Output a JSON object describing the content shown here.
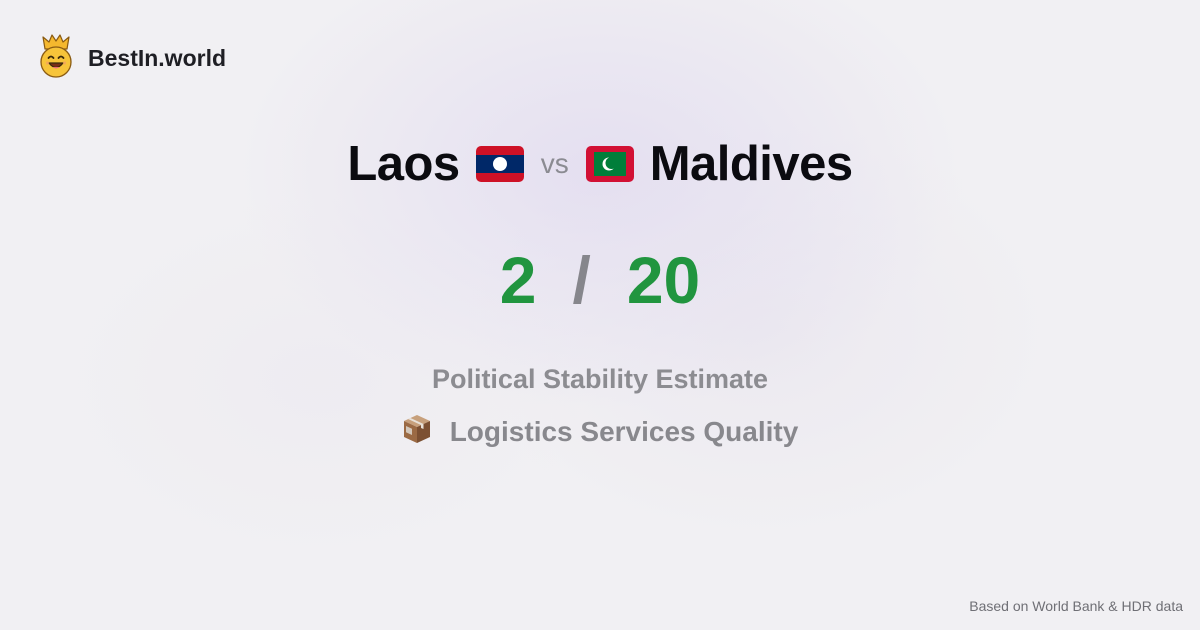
{
  "brand": {
    "name": "BestIn.world",
    "logo_icon": "crowned-smiley-icon"
  },
  "comparison": {
    "left_country": "Laos",
    "left_flag_icon": "laos-flag-icon",
    "vs_label": "vs",
    "right_country": "Maldives",
    "right_flag_icon": "maldives-flag-icon",
    "left_score": "2",
    "separator": "/",
    "right_score": "20"
  },
  "metrics": {
    "primary": "Political Stability Estimate",
    "secondary": "Logistics Services Quality",
    "secondary_icon": "package-box-icon"
  },
  "footer": {
    "source": "Based on World Bank & HDR data"
  },
  "colors": {
    "score": "#21953f",
    "laos_red": "#ce1126",
    "laos_blue": "#002868",
    "maldives_red": "#d21034",
    "maldives_green": "#007e3a"
  }
}
